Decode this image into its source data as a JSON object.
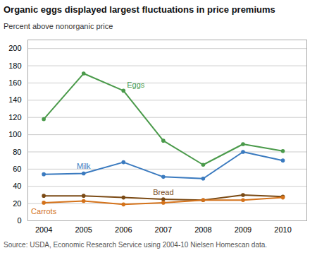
{
  "chart_data": {
    "type": "line",
    "title": "Organic eggs displayed largest fluctuations in price premiums",
    "ylabel": "Percent above nonorganic price",
    "source": "Source: USDA, Economic Research Service using 2004-10 Nielsen Homescan data.",
    "x": [
      2004,
      2005,
      2006,
      2007,
      2008,
      2009,
      2010
    ],
    "series": [
      {
        "name": "Eggs",
        "color": "#4a9a4a",
        "values": [
          118,
          171,
          151,
          93,
          65,
          89,
          81
        ]
      },
      {
        "name": "Milk",
        "color": "#3a7abf",
        "values": [
          54,
          55,
          68,
          51,
          49,
          80,
          70
        ]
      },
      {
        "name": "Bread",
        "color": "#7b4a14",
        "values": [
          29,
          29,
          27,
          25,
          24,
          30,
          28
        ]
      },
      {
        "name": "Carrots",
        "color": "#d4721a",
        "values": [
          21,
          23,
          19,
          21,
          24,
          24,
          27
        ]
      }
    ],
    "xlim": [
      2003.6,
      2010.6
    ],
    "xticks": [
      2004,
      2005,
      2006,
      2007,
      2008,
      2009,
      2010
    ],
    "ylim": [
      0,
      210
    ],
    "yticks": [
      0,
      20,
      40,
      60,
      80,
      100,
      120,
      140,
      160,
      180,
      200
    ],
    "grid": true,
    "marker": "circle"
  }
}
